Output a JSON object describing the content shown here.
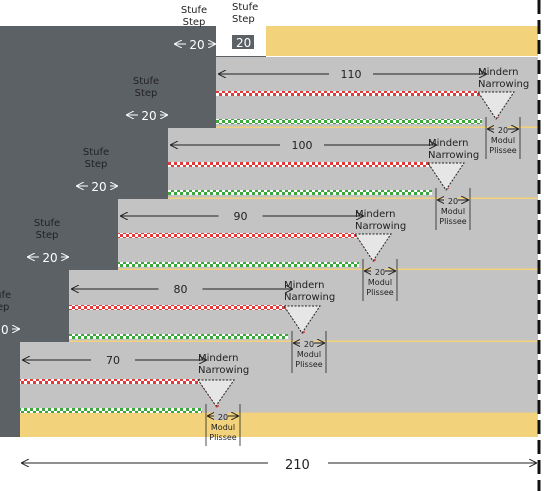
{
  "labels": {
    "stufe": "Stufe",
    "step": "Step",
    "mindern": "Mindern",
    "narrowing": "Narrowing",
    "modul": "Modul",
    "plissee": "Plissee"
  },
  "dimensions": {
    "step_width": "20",
    "module_width": "20",
    "total_width": "210",
    "rows": [
      "110",
      "100",
      "90",
      "80",
      "70"
    ]
  },
  "colors": {
    "dark": "#5c6166",
    "panel": "#c3c3c3",
    "yellow": "#f2d27a",
    "red": "#e23a3a",
    "green": "#3aa83a",
    "triangle": "#e6e6e6"
  }
}
